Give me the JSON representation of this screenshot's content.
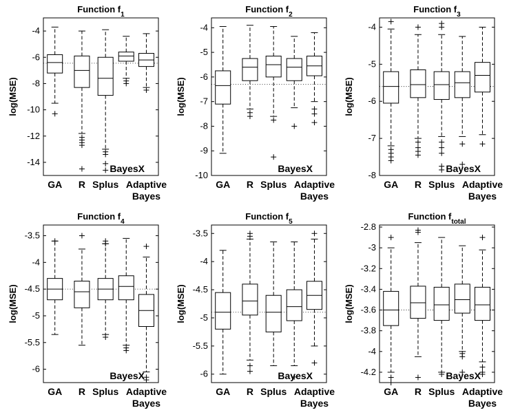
{
  "chart_data": [
    {
      "type": "box",
      "title": "Function f",
      "title_sub": "1",
      "ylabel": "log(MSE)",
      "ylim": [
        -15,
        -3
      ],
      "yticks": [
        -14,
        -12,
        -10,
        -8,
        -6,
        -4
      ],
      "categories": [
        "GA",
        "R",
        "Splus",
        "",
        "Adaptive"
      ],
      "sub_categories": [
        "",
        "",
        "",
        "",
        "Bayes"
      ],
      "annotation": "BayesX",
      "reference_line": -6.45,
      "boxes": [
        {
          "q1": -7.2,
          "median": -6.4,
          "q3": -5.8,
          "whisker_low": -9.5,
          "whisker_high": -3.7,
          "outliers": [
            -10.3
          ]
        },
        {
          "q1": -8.3,
          "median": -7.0,
          "q3": -5.9,
          "whisker_low": -11.8,
          "whisker_high": -4.0,
          "outliers": [
            -12.1,
            -12.3,
            -12.5,
            -12.7,
            -14.5
          ]
        },
        {
          "q1": -8.9,
          "median": -7.6,
          "q3": -6.0,
          "whisker_low": -13.0,
          "whisker_high": -3.9,
          "outliers": [
            -13.2,
            -13.4,
            -14.1,
            -14.6
          ]
        },
        {
          "q1": -6.3,
          "median": -5.9,
          "q3": -5.6,
          "whisker_low": -7.6,
          "whisker_high": -4.4,
          "outliers": [
            -7.8,
            -8.0
          ]
        },
        {
          "q1": -6.7,
          "median": -6.2,
          "q3": -5.7,
          "whisker_low": -8.3,
          "whisker_high": -4.2,
          "outliers": [
            -8.5
          ]
        }
      ]
    },
    {
      "type": "box",
      "title": "Function f",
      "title_sub": "2",
      "ylabel": "log(MSE)",
      "ylim": [
        -10,
        -3.6
      ],
      "yticks": [
        -10,
        -9,
        -8,
        -7,
        -6,
        -5,
        -4
      ],
      "categories": [
        "GA",
        "R",
        "Splus",
        "",
        "Adaptive"
      ],
      "sub_categories": [
        "",
        "",
        "",
        "",
        "Bayes"
      ],
      "annotation": "BayesX",
      "reference_line": -6.3,
      "boxes": [
        {
          "q1": -7.1,
          "median": -6.35,
          "q3": -5.75,
          "whisker_low": -9.1,
          "whisker_high": -3.95,
          "outliers": []
        },
        {
          "q1": -6.15,
          "median": -5.6,
          "q3": -5.25,
          "whisker_low": -7.3,
          "whisker_high": -3.9,
          "outliers": [
            -7.45,
            -7.6
          ]
        },
        {
          "q1": -6.0,
          "median": -5.5,
          "q3": -5.15,
          "whisker_low": -7.6,
          "whisker_high": -3.95,
          "outliers": [
            -7.75,
            -9.25
          ]
        },
        {
          "q1": -6.15,
          "median": -5.6,
          "q3": -5.25,
          "whisker_low": -7.25,
          "whisker_high": -4.35,
          "outliers": [
            -8.0
          ]
        },
        {
          "q1": -5.95,
          "median": -5.55,
          "q3": -5.15,
          "whisker_low": -7.0,
          "whisker_high": -4.2,
          "outliers": [
            -7.3,
            -7.5,
            -7.85
          ]
        }
      ]
    },
    {
      "type": "box",
      "title": "Function f",
      "title_sub": "3",
      "ylabel": "log(MSE)",
      "ylim": [
        -8,
        -3.75
      ],
      "yticks": [
        -8,
        -7,
        -6,
        -5,
        -4
      ],
      "categories": [
        "GA",
        "R",
        "Splus",
        "",
        "Adaptive"
      ],
      "sub_categories": [
        "",
        "",
        "",
        "",
        "Bayes"
      ],
      "annotation": "BayesX",
      "reference_line": -5.6,
      "boxes": [
        {
          "q1": -6.05,
          "median": -5.6,
          "q3": -5.2,
          "whisker_low": -7.2,
          "whisker_high": -4.05,
          "outliers": [
            -3.85,
            -7.3,
            -7.4,
            -7.5,
            -7.6
          ]
        },
        {
          "q1": -5.9,
          "median": -5.55,
          "q3": -5.15,
          "whisker_low": -7.0,
          "whisker_high": -4.2,
          "outliers": [
            -4.0,
            -7.1,
            -7.25,
            -7.35,
            -7.45
          ]
        },
        {
          "q1": -5.95,
          "median": -5.55,
          "q3": -5.2,
          "whisker_low": -6.95,
          "whisker_high": -4.2,
          "outliers": [
            -3.9,
            -4.0,
            -7.1,
            -7.25,
            -7.4,
            -7.75,
            -7.85
          ]
        },
        {
          "q1": -5.9,
          "median": -5.5,
          "q3": -5.2,
          "whisker_low": -6.95,
          "whisker_high": -4.25,
          "outliers": [
            -7.15,
            -7.7
          ]
        },
        {
          "q1": -5.75,
          "median": -5.3,
          "q3": -4.95,
          "whisker_low": -6.9,
          "whisker_high": -4.0,
          "outliers": [
            -7.15
          ]
        }
      ]
    },
    {
      "type": "box",
      "title": "Function f",
      "title_sub": "4",
      "ylabel": "log(MSE)",
      "ylim": [
        -6.25,
        -3.3
      ],
      "yticks": [
        -6,
        -5.5,
        -5,
        -4.5,
        -4,
        -3.5
      ],
      "categories": [
        "GA",
        "R",
        "Splus",
        "",
        "Adaptive"
      ],
      "sub_categories": [
        "",
        "",
        "",
        "",
        "Bayes"
      ],
      "annotation": "BayesX",
      "reference_line": -4.5,
      "boxes": [
        {
          "q1": -4.7,
          "median": -4.5,
          "q3": -4.3,
          "whisker_low": -5.35,
          "whisker_high": -3.6,
          "outliers": [
            -3.6
          ]
        },
        {
          "q1": -4.85,
          "median": -4.55,
          "q3": -4.35,
          "whisker_low": -5.55,
          "whisker_high": -3.75,
          "outliers": [
            -3.5
          ]
        },
        {
          "q1": -4.7,
          "median": -4.5,
          "q3": -4.3,
          "whisker_low": -5.35,
          "whisker_high": -3.65,
          "outliers": [
            -3.6,
            -3.65,
            -5.4
          ]
        },
        {
          "q1": -4.7,
          "median": -4.45,
          "q3": -4.25,
          "whisker_low": -5.55,
          "whisker_high": -3.55,
          "outliers": [
            -5.6,
            -5.65
          ]
        },
        {
          "q1": -5.2,
          "median": -4.9,
          "q3": -4.6,
          "whisker_low": -6.05,
          "whisker_high": -3.9,
          "outliers": [
            -3.7,
            -6.15,
            -6.2
          ]
        }
      ]
    },
    {
      "type": "box",
      "title": "Function f",
      "title_sub": "5",
      "ylabel": "log(MSE)",
      "ylim": [
        -6.15,
        -3.35
      ],
      "yticks": [
        -6,
        -5.5,
        -5,
        -4.5,
        -4,
        -3.5
      ],
      "categories": [
        "GA",
        "R",
        "Splus",
        "",
        "Adaptive"
      ],
      "sub_categories": [
        "",
        "",
        "",
        "",
        "Bayes"
      ],
      "annotation": "BayesX",
      "reference_line": -4.9,
      "boxes": [
        {
          "q1": -5.2,
          "median": -4.9,
          "q3": -4.55,
          "whisker_low": -6.0,
          "whisker_high": -3.8,
          "outliers": []
        },
        {
          "q1": -4.95,
          "median": -4.7,
          "q3": -4.4,
          "whisker_low": -5.75,
          "whisker_high": -3.6,
          "outliers": [
            -3.5,
            -3.55,
            -5.85,
            -5.95
          ]
        },
        {
          "q1": -5.25,
          "median": -4.9,
          "q3": -4.6,
          "whisker_low": -5.85,
          "whisker_high": -3.65,
          "outliers": []
        },
        {
          "q1": -5.05,
          "median": -4.8,
          "q3": -4.5,
          "whisker_low": -5.85,
          "whisker_high": -3.65,
          "outliers": [
            -6.05
          ]
        },
        {
          "q1": -4.85,
          "median": -4.6,
          "q3": -4.35,
          "whisker_low": -5.5,
          "whisker_high": -3.6,
          "outliers": [
            -3.5,
            -5.8
          ]
        }
      ]
    },
    {
      "type": "box",
      "title": "Function f",
      "title_sub": "total",
      "ylabel": "log(MSE)",
      "ylim": [
        -4.3,
        -2.78
      ],
      "yticks": [
        -4.2,
        -4,
        -3.8,
        -3.6,
        -3.4,
        -3.2,
        -3,
        -2.8
      ],
      "categories": [
        "GA",
        "R",
        "Splus",
        "",
        "Adaptive"
      ],
      "sub_categories": [
        "",
        "",
        "",
        "",
        "Bayes"
      ],
      "annotation": "BayesX",
      "reference_line": -3.6,
      "boxes": [
        {
          "q1": -3.75,
          "median": -3.6,
          "q3": -3.42,
          "whisker_low": -4.2,
          "whisker_high": -3.0,
          "outliers": [
            -2.9,
            -4.25,
            -4.3
          ]
        },
        {
          "q1": -3.68,
          "median": -3.53,
          "q3": -3.37,
          "whisker_low": -4.05,
          "whisker_high": -2.95,
          "outliers": [
            -2.83,
            -2.85,
            -4.25
          ]
        },
        {
          "q1": -3.7,
          "median": -3.55,
          "q3": -3.38,
          "whisker_low": -4.2,
          "whisker_high": -2.9,
          "outliers": [
            -4.22
          ]
        },
        {
          "q1": -3.63,
          "median": -3.5,
          "q3": -3.35,
          "whisker_low": -4.0,
          "whisker_high": -2.98,
          "outliers": [
            -4.02,
            -4.05,
            -4.2
          ]
        },
        {
          "q1": -3.7,
          "median": -3.55,
          "q3": -3.38,
          "whisker_low": -4.1,
          "whisker_high": -3.02,
          "outliers": [
            -2.9,
            -4.15,
            -4.2,
            -4.22
          ]
        }
      ]
    }
  ]
}
